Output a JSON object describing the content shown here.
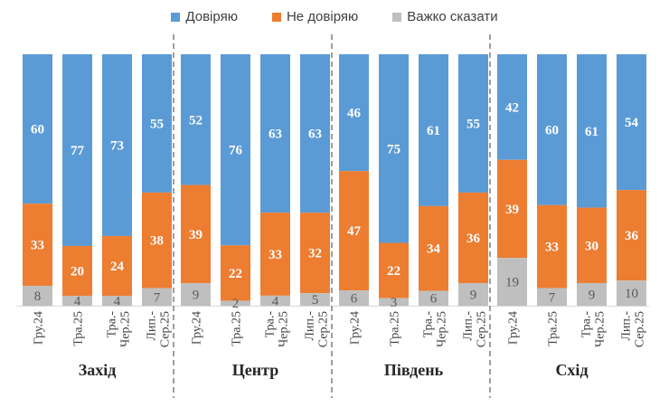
{
  "chart_data": {
    "type": "bar",
    "stacked": true,
    "percent": true,
    "legend_position": "top",
    "grid": false,
    "categories": [
      "Гру.24",
      "Тра.25",
      "Тра.-Чер.25",
      "Лип.-Сер.25"
    ],
    "groups": [
      {
        "name": "Захід",
        "values": {
          "trust": [
            60,
            77,
            73,
            55
          ],
          "distrust": [
            33,
            20,
            24,
            38
          ],
          "hard": [
            8,
            4,
            4,
            7
          ]
        }
      },
      {
        "name": "Центр",
        "values": {
          "trust": [
            52,
            76,
            63,
            63
          ],
          "distrust": [
            39,
            22,
            33,
            32
          ],
          "hard": [
            9,
            2,
            4,
            5
          ]
        }
      },
      {
        "name": "Південь",
        "values": {
          "trust": [
            46,
            75,
            61,
            55
          ],
          "distrust": [
            47,
            22,
            34,
            36
          ],
          "hard": [
            6,
            3,
            6,
            9
          ]
        }
      },
      {
        "name": "Схід",
        "values": {
          "trust": [
            42,
            60,
            61,
            54
          ],
          "distrust": [
            39,
            33,
            30,
            36
          ],
          "hard": [
            19,
            7,
            9,
            10
          ]
        }
      }
    ],
    "series": [
      {
        "key": "trust",
        "name": "Довіряю",
        "color": "#5b9bd5"
      },
      {
        "key": "distrust",
        "name": "Не довіряю",
        "color": "#ed7d31"
      },
      {
        "key": "hard",
        "name": "Важко сказати",
        "color": "#bfbfbf"
      }
    ]
  }
}
